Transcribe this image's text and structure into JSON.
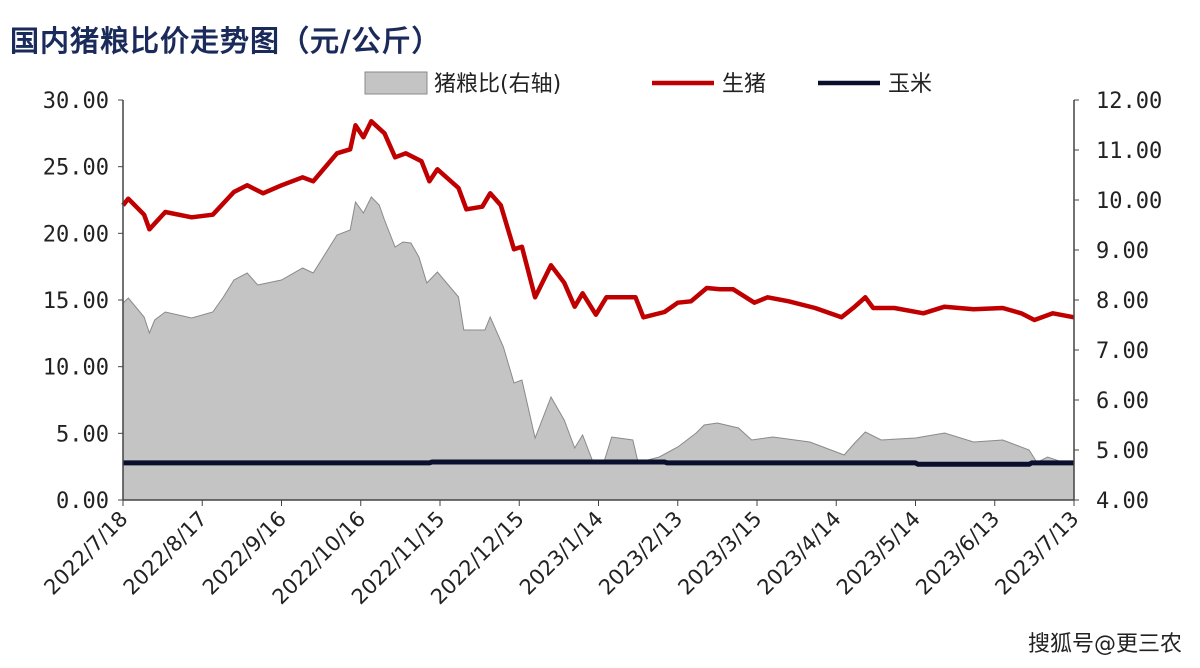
{
  "chart_data": {
    "type": "line",
    "title": "国内猪粮比价走势图（元/公斤）",
    "xlabel": "",
    "ylabel": "",
    "x_tick_labels": [
      "2022/7/18",
      "2022/8/17",
      "2022/9/16",
      "2022/10/16",
      "2022/11/15",
      "2022/12/15",
      "2023/1/14",
      "2023/2/13",
      "2023/3/15",
      "2023/4/14",
      "2023/5/14",
      "2023/6/13",
      "2023/7/13"
    ],
    "x_tick_days": [
      0,
      30,
      60,
      90,
      120,
      150,
      180,
      210,
      240,
      270,
      300,
      330,
      360
    ],
    "x_range_days": [
      0,
      360
    ],
    "ylim_left": [
      0,
      30
    ],
    "yticks_left": [
      "0.00",
      "5.00",
      "10.00",
      "15.00",
      "20.00",
      "25.00",
      "30.00"
    ],
    "ylim_right": [
      4,
      12
    ],
    "yticks_right": [
      "4.00",
      "5.00",
      "6.00",
      "7.00",
      "8.00",
      "9.00",
      "10.00",
      "11.00",
      "12.00"
    ],
    "legend_position": "top",
    "grid": false,
    "series": [
      {
        "name": "猪粮比(右轴)",
        "type": "area",
        "axis": "right",
        "color": "#c4c4c4",
        "points": [
          [
            0,
            7.94
          ],
          [
            2,
            8.04
          ],
          [
            8,
            7.66
          ],
          [
            10,
            7.34
          ],
          [
            12,
            7.6
          ],
          [
            16,
            7.76
          ],
          [
            26,
            7.64
          ],
          [
            34,
            7.76
          ],
          [
            38,
            8.06
          ],
          [
            42,
            8.4
          ],
          [
            47,
            8.54
          ],
          [
            51,
            8.3
          ],
          [
            60,
            8.4
          ],
          [
            68,
            8.64
          ],
          [
            72,
            8.54
          ],
          [
            81,
            9.3
          ],
          [
            86,
            9.4
          ],
          [
            88,
            9.96
          ],
          [
            91,
            9.74
          ],
          [
            94,
            10.06
          ],
          [
            97,
            9.9
          ],
          [
            99,
            9.6
          ],
          [
            103,
            9.06
          ],
          [
            106,
            9.16
          ],
          [
            109,
            9.14
          ],
          [
            112,
            8.86
          ],
          [
            115,
            8.34
          ],
          [
            119,
            8.56
          ],
          [
            127,
            8.06
          ],
          [
            129,
            7.4
          ],
          [
            137,
            7.4
          ],
          [
            139,
            7.66
          ],
          [
            144,
            7.06
          ],
          [
            148,
            6.34
          ],
          [
            151,
            6.4
          ],
          [
            156,
            5.24
          ],
          [
            162,
            6.06
          ],
          [
            167,
            5.6
          ],
          [
            171,
            5.04
          ],
          [
            174,
            5.3
          ],
          [
            178,
            4.75
          ],
          [
            182,
            4.75
          ],
          [
            185,
            5.26
          ],
          [
            193,
            5.2
          ],
          [
            195,
            4.75
          ],
          [
            203,
            4.86
          ],
          [
            210,
            5.06
          ],
          [
            217,
            5.34
          ],
          [
            220,
            5.5
          ],
          [
            225,
            5.54
          ],
          [
            233,
            5.44
          ],
          [
            238,
            5.2
          ],
          [
            246,
            5.26
          ],
          [
            260,
            5.16
          ],
          [
            273,
            4.9
          ],
          [
            277,
            5.14
          ],
          [
            281,
            5.36
          ],
          [
            287,
            5.2
          ],
          [
            300,
            5.24
          ],
          [
            311,
            5.34
          ],
          [
            322,
            5.16
          ],
          [
            333,
            5.2
          ],
          [
            343,
            5.0
          ],
          [
            346,
            4.75
          ],
          [
            350,
            4.86
          ],
          [
            356,
            4.75
          ],
          [
            360,
            4.75
          ]
        ]
      },
      {
        "name": "生猪",
        "type": "line",
        "axis": "left",
        "color": "#c00000",
        "points": [
          [
            0,
            22.1
          ],
          [
            2,
            22.6
          ],
          [
            8,
            21.4
          ],
          [
            10,
            20.3
          ],
          [
            16,
            21.6
          ],
          [
            26,
            21.2
          ],
          [
            34,
            21.4
          ],
          [
            42,
            23.1
          ],
          [
            47,
            23.6
          ],
          [
            53,
            23.0
          ],
          [
            60,
            23.6
          ],
          [
            68,
            24.2
          ],
          [
            72,
            23.9
          ],
          [
            81,
            26.0
          ],
          [
            86,
            26.3
          ],
          [
            88,
            28.1
          ],
          [
            91,
            27.2
          ],
          [
            94,
            28.4
          ],
          [
            99,
            27.5
          ],
          [
            103,
            25.7
          ],
          [
            107,
            26.0
          ],
          [
            113,
            25.4
          ],
          [
            116,
            23.9
          ],
          [
            119,
            24.8
          ],
          [
            127,
            23.4
          ],
          [
            130,
            21.8
          ],
          [
            136,
            22.0
          ],
          [
            139,
            23.0
          ],
          [
            143,
            22.1
          ],
          [
            148,
            18.8
          ],
          [
            151,
            19.0
          ],
          [
            156,
            15.2
          ],
          [
            162,
            17.6
          ],
          [
            167,
            16.3
          ],
          [
            171,
            14.5
          ],
          [
            174,
            15.5
          ],
          [
            179,
            13.9
          ],
          [
            183,
            15.2
          ],
          [
            194,
            15.2
          ],
          [
            197,
            13.7
          ],
          [
            205,
            14.1
          ],
          [
            210,
            14.8
          ],
          [
            215,
            14.9
          ],
          [
            221,
            15.9
          ],
          [
            226,
            15.8
          ],
          [
            231,
            15.8
          ],
          [
            239,
            14.8
          ],
          [
            244,
            15.2
          ],
          [
            252,
            14.9
          ],
          [
            262,
            14.4
          ],
          [
            272,
            13.7
          ],
          [
            277,
            14.5
          ],
          [
            281,
            15.2
          ],
          [
            284,
            14.4
          ],
          [
            292,
            14.4
          ],
          [
            303,
            14.0
          ],
          [
            311,
            14.5
          ],
          [
            322,
            14.3
          ],
          [
            333,
            14.4
          ],
          [
            340,
            14.0
          ],
          [
            345,
            13.5
          ],
          [
            352,
            14.0
          ],
          [
            360,
            13.7
          ]
        ]
      },
      {
        "name": "玉米",
        "type": "line",
        "axis": "left",
        "color": "#0a0f2e",
        "points": [
          [
            0,
            2.78
          ],
          [
            116,
            2.78
          ],
          [
            117,
            2.85
          ],
          [
            205,
            2.85
          ],
          [
            206,
            2.78
          ],
          [
            300,
            2.78
          ],
          [
            301,
            2.68
          ],
          [
            343,
            2.68
          ],
          [
            344,
            2.78
          ],
          [
            360,
            2.78
          ]
        ]
      }
    ]
  },
  "watermark": "搜狐号@更三农"
}
